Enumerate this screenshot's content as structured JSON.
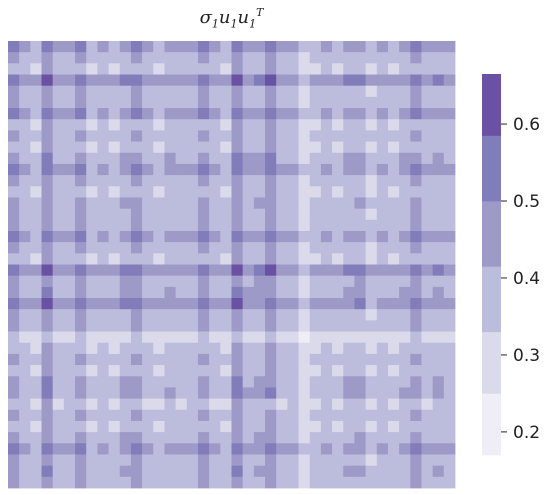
{
  "chart_data": {
    "type": "heatmap",
    "title": {
      "sigma": "σ",
      "sigma_sub": "1",
      "u": "u",
      "u_sub": "1",
      "ut": "u",
      "ut_sub": "1",
      "ut_sup": "T"
    },
    "n": 40,
    "u": [
      0.9,
      0.78,
      0.72,
      1.0,
      0.75,
      0.78,
      0.9,
      0.72,
      0.78,
      0.72,
      0.85,
      0.9,
      0.75,
      0.72,
      0.8,
      0.75,
      0.78,
      0.92,
      0.75,
      0.72,
      1.0,
      0.8,
      0.84,
      0.95,
      0.75,
      0.78,
      0.6,
      0.72,
      0.78,
      0.72,
      0.82,
      0.85,
      0.7,
      0.78,
      0.72,
      0.8,
      0.9,
      0.75,
      0.82,
      0.78
    ],
    "sigma": 0.62,
    "colorbar": {
      "min": 0.17,
      "max": 0.665,
      "bins": [
        0.17,
        0.25,
        0.33,
        0.415,
        0.5,
        0.585,
        0.665
      ],
      "colors": [
        "#efedf5",
        "#dadaeb",
        "#bcbddc",
        "#9e9ac8",
        "#807dba",
        "#6a51a3",
        "#54278f"
      ],
      "ticks": [
        0.2,
        0.3,
        0.4,
        0.5,
        0.6
      ],
      "tick_labels": [
        "0.2",
        "0.3",
        "0.4",
        "0.5",
        "0.6"
      ]
    }
  }
}
